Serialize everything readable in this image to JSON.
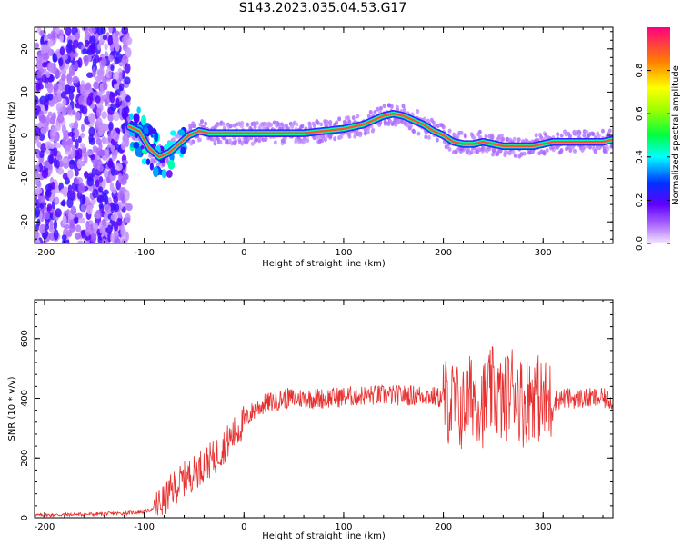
{
  "title": "S143.2023.035.04.53.G17",
  "chart_data": [
    {
      "type": "heatmap",
      "xlabel": "Height of straight line (km)",
      "ylabel": "Frequency (Hz)",
      "xlim": [
        -210,
        370
      ],
      "ylim": [
        -25,
        25
      ],
      "x_ticks": [
        -200,
        -100,
        0,
        100,
        200,
        300
      ],
      "y_ticks": [
        -20,
        -10,
        0,
        10,
        20
      ],
      "colorbar": {
        "label": "Normalized spectral amplitude",
        "range": [
          0,
          1
        ],
        "ticks": [
          0.0,
          0.2,
          0.4,
          0.6,
          0.8
        ]
      },
      "ridge": {
        "x": [
          -115,
          -105,
          -95,
          -85,
          -75,
          -65,
          -55,
          -45,
          -35,
          -20,
          0,
          20,
          40,
          60,
          80,
          100,
          110,
          120,
          130,
          140,
          150,
          160,
          170,
          180,
          190,
          200,
          210,
          220,
          230,
          240,
          250,
          260,
          270,
          280,
          290,
          300,
          310,
          320,
          330,
          340,
          350,
          360,
          370
        ],
        "frequency": [
          2,
          1,
          -3,
          -5,
          -4,
          -2,
          0,
          1,
          0.5,
          0.5,
          0.5,
          0.5,
          0.5,
          0.5,
          1,
          1.5,
          2,
          2.5,
          3.5,
          4.5,
          5,
          4.5,
          3.5,
          2.5,
          1,
          0,
          -1.5,
          -2,
          -2,
          -1.5,
          -2,
          -2.5,
          -2.5,
          -2.5,
          -2.5,
          -2,
          -1.5,
          -1.5,
          -1.5,
          -1.5,
          -1.5,
          -1.5,
          -1
        ]
      }
    },
    {
      "type": "line",
      "xlabel": "Height of straight line (km)",
      "ylabel": "SNR (10 * v/v)",
      "xlim": [
        -210,
        370
      ],
      "ylim": [
        0,
        730
      ],
      "x_ticks": [
        -200,
        -100,
        0,
        100,
        200,
        300
      ],
      "y_ticks": [
        0,
        200,
        400,
        600
      ],
      "series": [
        {
          "color": "#e83030",
          "x": [
            -210,
            -180,
            -150,
            -120,
            -100,
            -90,
            -80,
            -70,
            -60,
            -50,
            -40,
            -30,
            -20,
            -10,
            0,
            10,
            20,
            30,
            40,
            60,
            80,
            100,
            120,
            140,
            160,
            180,
            200,
            210,
            220,
            230,
            240,
            250,
            260,
            270,
            280,
            290,
            300,
            320,
            340,
            360,
            370
          ],
          "values": [
            8,
            10,
            12,
            15,
            20,
            30,
            60,
            100,
            130,
            150,
            180,
            200,
            240,
            280,
            320,
            360,
            380,
            390,
            400,
            400,
            400,
            405,
            410,
            410,
            410,
            410,
            400,
            380,
            360,
            420,
            380,
            430,
            380,
            450,
            380,
            420,
            380,
            400,
            400,
            400,
            390
          ]
        }
      ]
    }
  ]
}
